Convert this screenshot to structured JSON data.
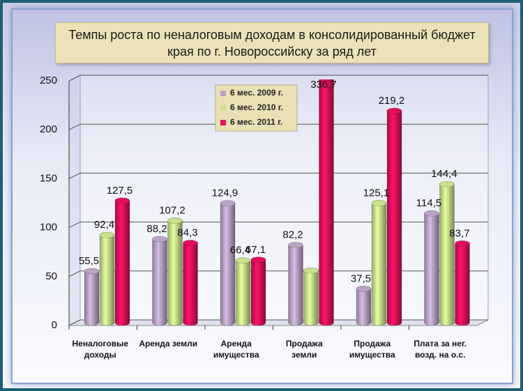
{
  "chart_data": {
    "type": "bar3d",
    "title": "Темпы роста по неналоговым доходам в консолидированный бюджет края по г. Новороссийску за ряд лет",
    "categories": [
      "Неналоговые доходы",
      "Аренда земли",
      "Аренда имущества",
      "Продажа земли",
      "Продажа имущества",
      "Плата за нег. возд. на о.с."
    ],
    "series": [
      {
        "name": "6 мес. 2009 г.",
        "color": "#b9a4c6",
        "values": [
          55.5,
          88.2,
          124.9,
          82.2,
          37.5,
          114.5
        ],
        "value_labels": [
          "55,5",
          "88,2",
          "124,9",
          "82,2",
          "37,5",
          "114,5"
        ]
      },
      {
        "name": "6 мес. 2010 г.",
        "color": "#c9e28c",
        "values": [
          92.4,
          107.2,
          66.4,
          56,
          125.1,
          144.4
        ],
        "value_labels": [
          "92,4",
          "107,2",
          "66,4",
          null,
          "125,1",
          "144,4"
        ]
      },
      {
        "name": "6 мес. 2011 г.",
        "color": "#e2105c",
        "values": [
          127.5,
          84.3,
          67.1,
          336.7,
          219.2,
          83.7
        ],
        "value_labels": [
          "127,5",
          "84,3",
          "67,1",
          "336,7",
          "219,2",
          "83,7"
        ]
      }
    ],
    "ylim": [
      0,
      250
    ],
    "yticks": [
      0,
      50,
      100,
      150,
      200,
      250
    ],
    "grid": true,
    "legend": "top-center"
  }
}
